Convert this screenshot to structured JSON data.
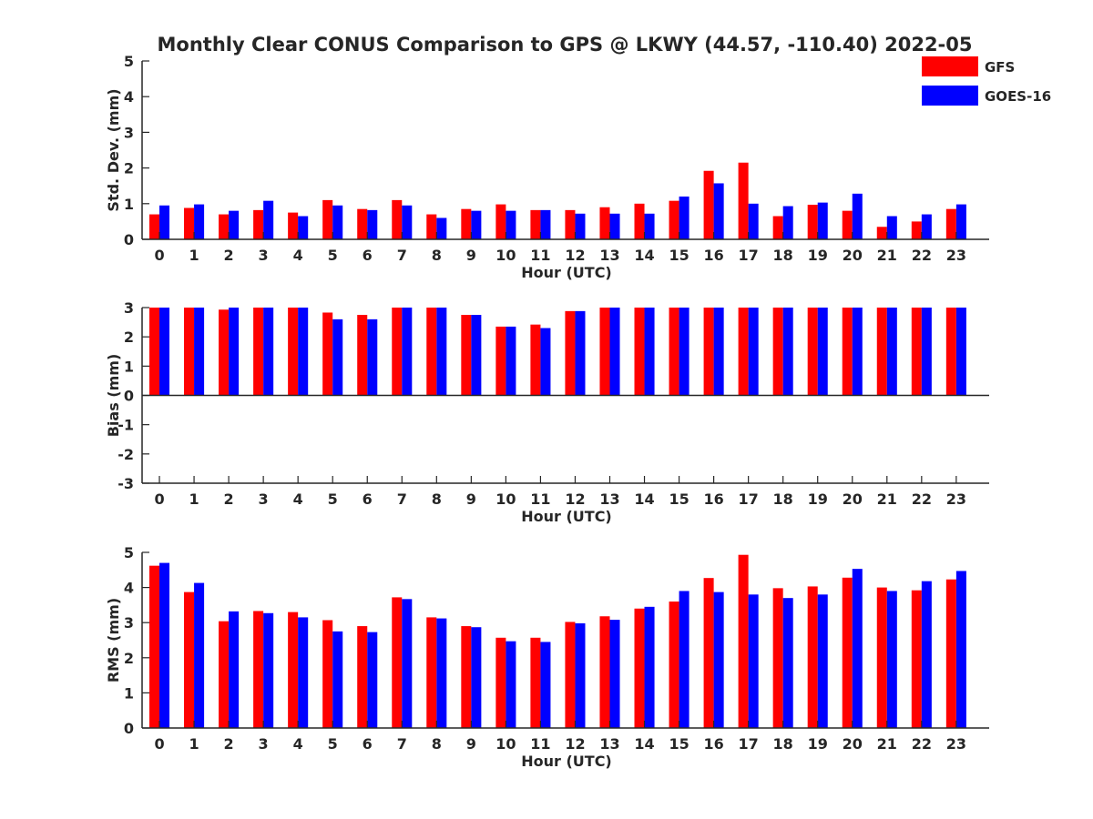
{
  "chart_data": {
    "title": "Monthly Clear CONUS Comparison to GPS @ LKWY (44.57, -110.40) 2022-05",
    "legend": {
      "position": "top-right",
      "entries": [
        "GFS",
        "GOES-16"
      ]
    },
    "colors": {
      "GFS": "#ff0000",
      "GOES-16": "#0000ff",
      "axis": "#262626"
    },
    "panels": [
      {
        "type": "bar",
        "xlabel": "Hour (UTC)",
        "ylabel": "Std. Dev. (mm)",
        "ylim": [
          0,
          5
        ],
        "yticks": [
          "0",
          "1",
          "2",
          "3",
          "4",
          "5"
        ],
        "categories": [
          "0",
          "1",
          "2",
          "3",
          "4",
          "5",
          "6",
          "7",
          "8",
          "9",
          "10",
          "11",
          "12",
          "13",
          "14",
          "15",
          "16",
          "17",
          "18",
          "19",
          "20",
          "21",
          "22",
          "23"
        ],
        "series": [
          {
            "name": "GFS",
            "values": [
              0.7,
              0.88,
              0.7,
              0.82,
              0.75,
              1.1,
              0.85,
              1.1,
              0.7,
              0.85,
              0.98,
              0.82,
              0.82,
              0.9,
              1.0,
              1.08,
              1.92,
              2.15,
              0.65,
              0.97,
              0.8,
              0.35,
              0.5,
              0.85
            ]
          },
          {
            "name": "GOES-16",
            "values": [
              0.95,
              0.98,
              0.8,
              1.08,
              0.65,
              0.95,
              0.82,
              0.95,
              0.6,
              0.8,
              0.8,
              0.82,
              0.72,
              0.72,
              0.72,
              1.2,
              1.57,
              1.0,
              0.93,
              1.03,
              1.28,
              0.65,
              0.7,
              0.98
            ]
          }
        ]
      },
      {
        "type": "bar",
        "xlabel": "Hour (UTC)",
        "ylabel": "Bias (mm)",
        "ylim": [
          -3,
          3
        ],
        "yticks": [
          "-3",
          "-2",
          "-1",
          "0",
          "1",
          "2",
          "3"
        ],
        "categories": [
          "0",
          "1",
          "2",
          "3",
          "4",
          "5",
          "6",
          "7",
          "8",
          "9",
          "10",
          "11",
          "12",
          "13",
          "14",
          "15",
          "16",
          "17",
          "18",
          "19",
          "20",
          "21",
          "22",
          "23"
        ],
        "series": [
          {
            "name": "GFS",
            "values": [
              3.0,
              3.0,
              2.93,
              3.0,
              3.0,
              2.83,
              2.75,
              3.0,
              3.0,
              2.75,
              2.35,
              2.42,
              2.88,
              3.0,
              3.0,
              3.0,
              3.0,
              3.0,
              3.0,
              3.0,
              3.0,
              3.0,
              3.0,
              3.0
            ]
          },
          {
            "name": "GOES-16",
            "values": [
              3.0,
              3.0,
              3.0,
              3.0,
              3.0,
              2.6,
              2.6,
              3.0,
              3.0,
              2.75,
              2.35,
              2.3,
              2.88,
              3.0,
              3.0,
              3.0,
              3.0,
              3.0,
              3.0,
              3.0,
              3.0,
              3.0,
              3.0,
              3.0
            ]
          }
        ]
      },
      {
        "type": "bar",
        "xlabel": "Hour (UTC)",
        "ylabel": "RMS (mm)",
        "ylim": [
          0,
          5
        ],
        "yticks": [
          "0",
          "1",
          "2",
          "3",
          "4",
          "5"
        ],
        "categories": [
          "0",
          "1",
          "2",
          "3",
          "4",
          "5",
          "6",
          "7",
          "8",
          "9",
          "10",
          "11",
          "12",
          "13",
          "14",
          "15",
          "16",
          "17",
          "18",
          "19",
          "20",
          "21",
          "22",
          "23"
        ],
        "series": [
          {
            "name": "GFS",
            "values": [
              4.62,
              3.87,
              3.04,
              3.33,
              3.3,
              3.07,
              2.9,
              3.72,
              3.15,
              2.9,
              2.57,
              2.57,
              3.02,
              3.18,
              3.4,
              3.6,
              4.27,
              4.93,
              3.98,
              4.03,
              4.28,
              4.0,
              3.92,
              4.23
            ]
          },
          {
            "name": "GOES-16",
            "values": [
              4.7,
              4.13,
              3.32,
              3.27,
              3.15,
              2.75,
              2.73,
              3.67,
              3.12,
              2.87,
              2.47,
              2.45,
              2.98,
              3.08,
              3.45,
              3.9,
              3.87,
              3.8,
              3.7,
              3.8,
              4.53,
              3.9,
              4.18,
              4.47
            ]
          }
        ]
      }
    ]
  }
}
